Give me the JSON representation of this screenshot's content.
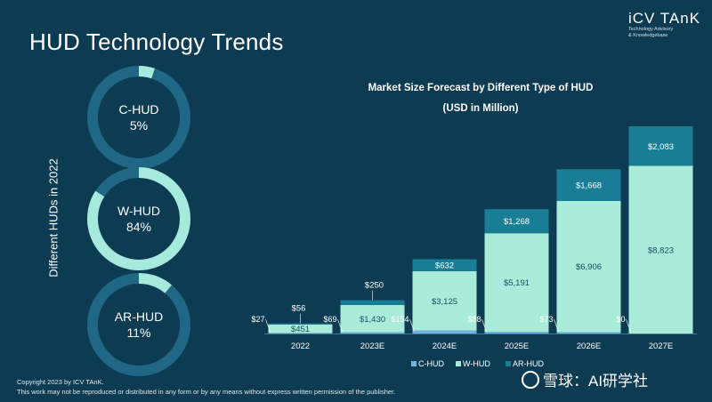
{
  "title": "HUD Technology Trends",
  "brand": {
    "name": "iCV TAnK",
    "tagline_1": "Technology Advisory",
    "tagline_2": "& Knowledgebase"
  },
  "side_label": "Different HUDs in 2022",
  "donuts": [
    {
      "name": "C-HUD",
      "percent_label": "5%",
      "share": 0.05
    },
    {
      "name": "W-HUD",
      "percent_label": "84%",
      "share": 0.84
    },
    {
      "name": "AR-HUD",
      "percent_label": "11%",
      "share": 0.11
    }
  ],
  "footer": {
    "line1": "Copyright  2023 by ICV TAnK.",
    "line2": "This work may not be reproduced or distributed in any form or by any means without express written permission of the publisher."
  },
  "watermark": "雪球：AI研学社",
  "colors": {
    "background": "#0d3b52",
    "ring_track": "#1f6784",
    "ring_fill": "#a5eadc",
    "c_hud": "#6fb3e0",
    "w_hud": "#a9ecd9",
    "ar_hud": "#1a7d96"
  },
  "chart_data": {
    "type": "bar",
    "stacked": true,
    "title": "Market Size Forecast by Different Type of HUD",
    "subtitle": "(USD in Million)",
    "categories": [
      "2022",
      "2023E",
      "2024E",
      "2025E",
      "2026E",
      "2027E"
    ],
    "series": [
      {
        "name": "C-HUD",
        "values": [
          27,
          69,
          154,
          88,
          73,
          0
        ],
        "labels": [
          "$27",
          "$69",
          "$154",
          "$88",
          "$73",
          "$0"
        ]
      },
      {
        "name": "W-HUD",
        "values": [
          451,
          1430,
          3125,
          5191,
          6906,
          8823
        ],
        "labels": [
          "$451",
          "$1,430",
          "$3,125",
          "$5,191",
          "$6,906",
          "$8,823"
        ]
      },
      {
        "name": "AR-HUD",
        "values": [
          56,
          250,
          632,
          1268,
          1668,
          2083
        ],
        "labels": [
          "$56",
          "$250",
          "$632",
          "$1,268",
          "$1,668",
          "$2,083"
        ]
      }
    ],
    "ylim": [
      0,
      11000
    ],
    "grid": false,
    "legend": "bottom"
  }
}
